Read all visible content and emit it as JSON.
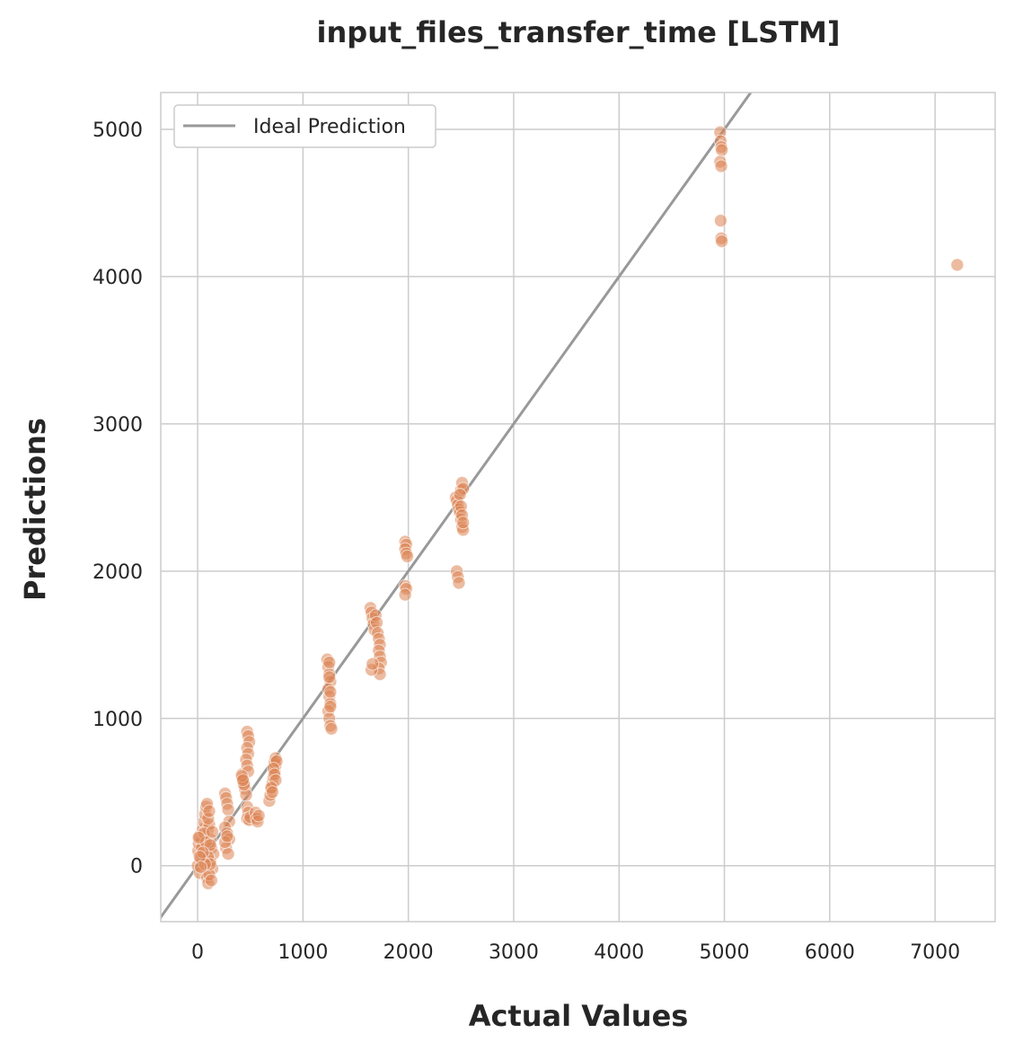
{
  "chart_data": {
    "type": "scatter",
    "title": "input_files_transfer_time [LSTM]",
    "xlabel": "Actual Values",
    "ylabel": "Predictions",
    "xlim": [
      -350,
      7570
    ],
    "ylim": [
      -380,
      5250
    ],
    "xticks": [
      0,
      1000,
      2000,
      3000,
      4000,
      5000,
      6000,
      7000
    ],
    "yticks": [
      0,
      1000,
      2000,
      3000,
      4000,
      5000
    ],
    "grid": true,
    "legend": {
      "placement": "top-left",
      "entries": [
        "Ideal Prediction"
      ]
    },
    "colors": {
      "points": "#dd8452",
      "ideal_line": "#999999",
      "grid": "#cccccc",
      "frame": "#cccccc"
    },
    "ideal_line": {
      "name": "Ideal Prediction",
      "x": [
        -380,
        5300
      ],
      "y": [
        -380,
        5300
      ]
    },
    "series": [
      {
        "name": "",
        "x": [
          0,
          5,
          10,
          15,
          20,
          30,
          40,
          50,
          60,
          70,
          80,
          90,
          100,
          110,
          120,
          130,
          140,
          150,
          90,
          100,
          110,
          120,
          60,
          80,
          100,
          120,
          130,
          100,
          110,
          120,
          50,
          70,
          140,
          10,
          20,
          30,
          260,
          270,
          280,
          290,
          300,
          260,
          280,
          300,
          270,
          290,
          260,
          280,
          420,
          430,
          440,
          450,
          460,
          470,
          480,
          490,
          470,
          480,
          460,
          470,
          480,
          470,
          480,
          470,
          490,
          500,
          430,
          440,
          420,
          430,
          550,
          560,
          570,
          580,
          680,
          690,
          700,
          710,
          720,
          730,
          740,
          730,
          740,
          750,
          720,
          730,
          740,
          700,
          710,
          1230,
          1240,
          1250,
          1260,
          1240,
          1250,
          1260,
          1240,
          1250,
          1260,
          1250,
          1260,
          1260,
          1250,
          1270,
          1640,
          1650,
          1660,
          1670,
          1680,
          1690,
          1700,
          1710,
          1720,
          1730,
          1720,
          1730,
          1740,
          1720,
          1730,
          1650,
          1660,
          1970,
          1980,
          1970,
          1980,
          1990,
          1970,
          1980,
          1970,
          2450,
          2460,
          2470,
          2480,
          2490,
          2500,
          2510,
          2520,
          2500,
          2510,
          2520,
          2460,
          2470,
          2480,
          2490,
          2500,
          2510,
          2520,
          4960,
          4965,
          4970,
          4975,
          4960,
          4970,
          4965,
          4970,
          4975,
          7210
        ],
        "y": [
          0,
          100,
          150,
          200,
          -50,
          50,
          120,
          250,
          300,
          350,
          400,
          420,
          250,
          280,
          180,
          120,
          -20,
          80,
          -80,
          -120,
          -60,
          30,
          220,
          160,
          60,
          10,
          -100,
          320,
          370,
          140,
          90,
          10,
          230,
          190,
          60,
          -10,
          490,
          460,
          420,
          380,
          300,
          260,
          220,
          180,
          120,
          80,
          160,
          200,
          620,
          600,
          560,
          520,
          480,
          910,
          880,
          840,
          800,
          760,
          720,
          680,
          640,
          400,
          360,
          320,
          310,
          330,
          590,
          550,
          610,
          580,
          360,
          320,
          300,
          340,
          440,
          480,
          520,
          560,
          600,
          640,
          680,
          700,
          730,
          710,
          660,
          620,
          580,
          530,
          500,
          1400,
          1350,
          1300,
          1250,
          1200,
          1150,
          1100,
          1050,
          1000,
          950,
          1280,
          1180,
          1080,
          1380,
          930,
          1750,
          1720,
          1680,
          1640,
          1600,
          1700,
          1650,
          1580,
          1540,
          1500,
          1460,
          1420,
          1380,
          1340,
          1300,
          1330,
          1370,
          2200,
          2180,
          2150,
          2120,
          2100,
          1900,
          1880,
          1840,
          2500,
          2480,
          2450,
          2420,
          2400,
          2550,
          2600,
          2560,
          2350,
          2300,
          2280,
          2000,
          1960,
          1920,
          2520,
          2440,
          2380,
          2330,
          4980,
          4920,
          4880,
          4860,
          4780,
          4750,
          4380,
          4260,
          4240,
          4080
        ]
      }
    ]
  }
}
